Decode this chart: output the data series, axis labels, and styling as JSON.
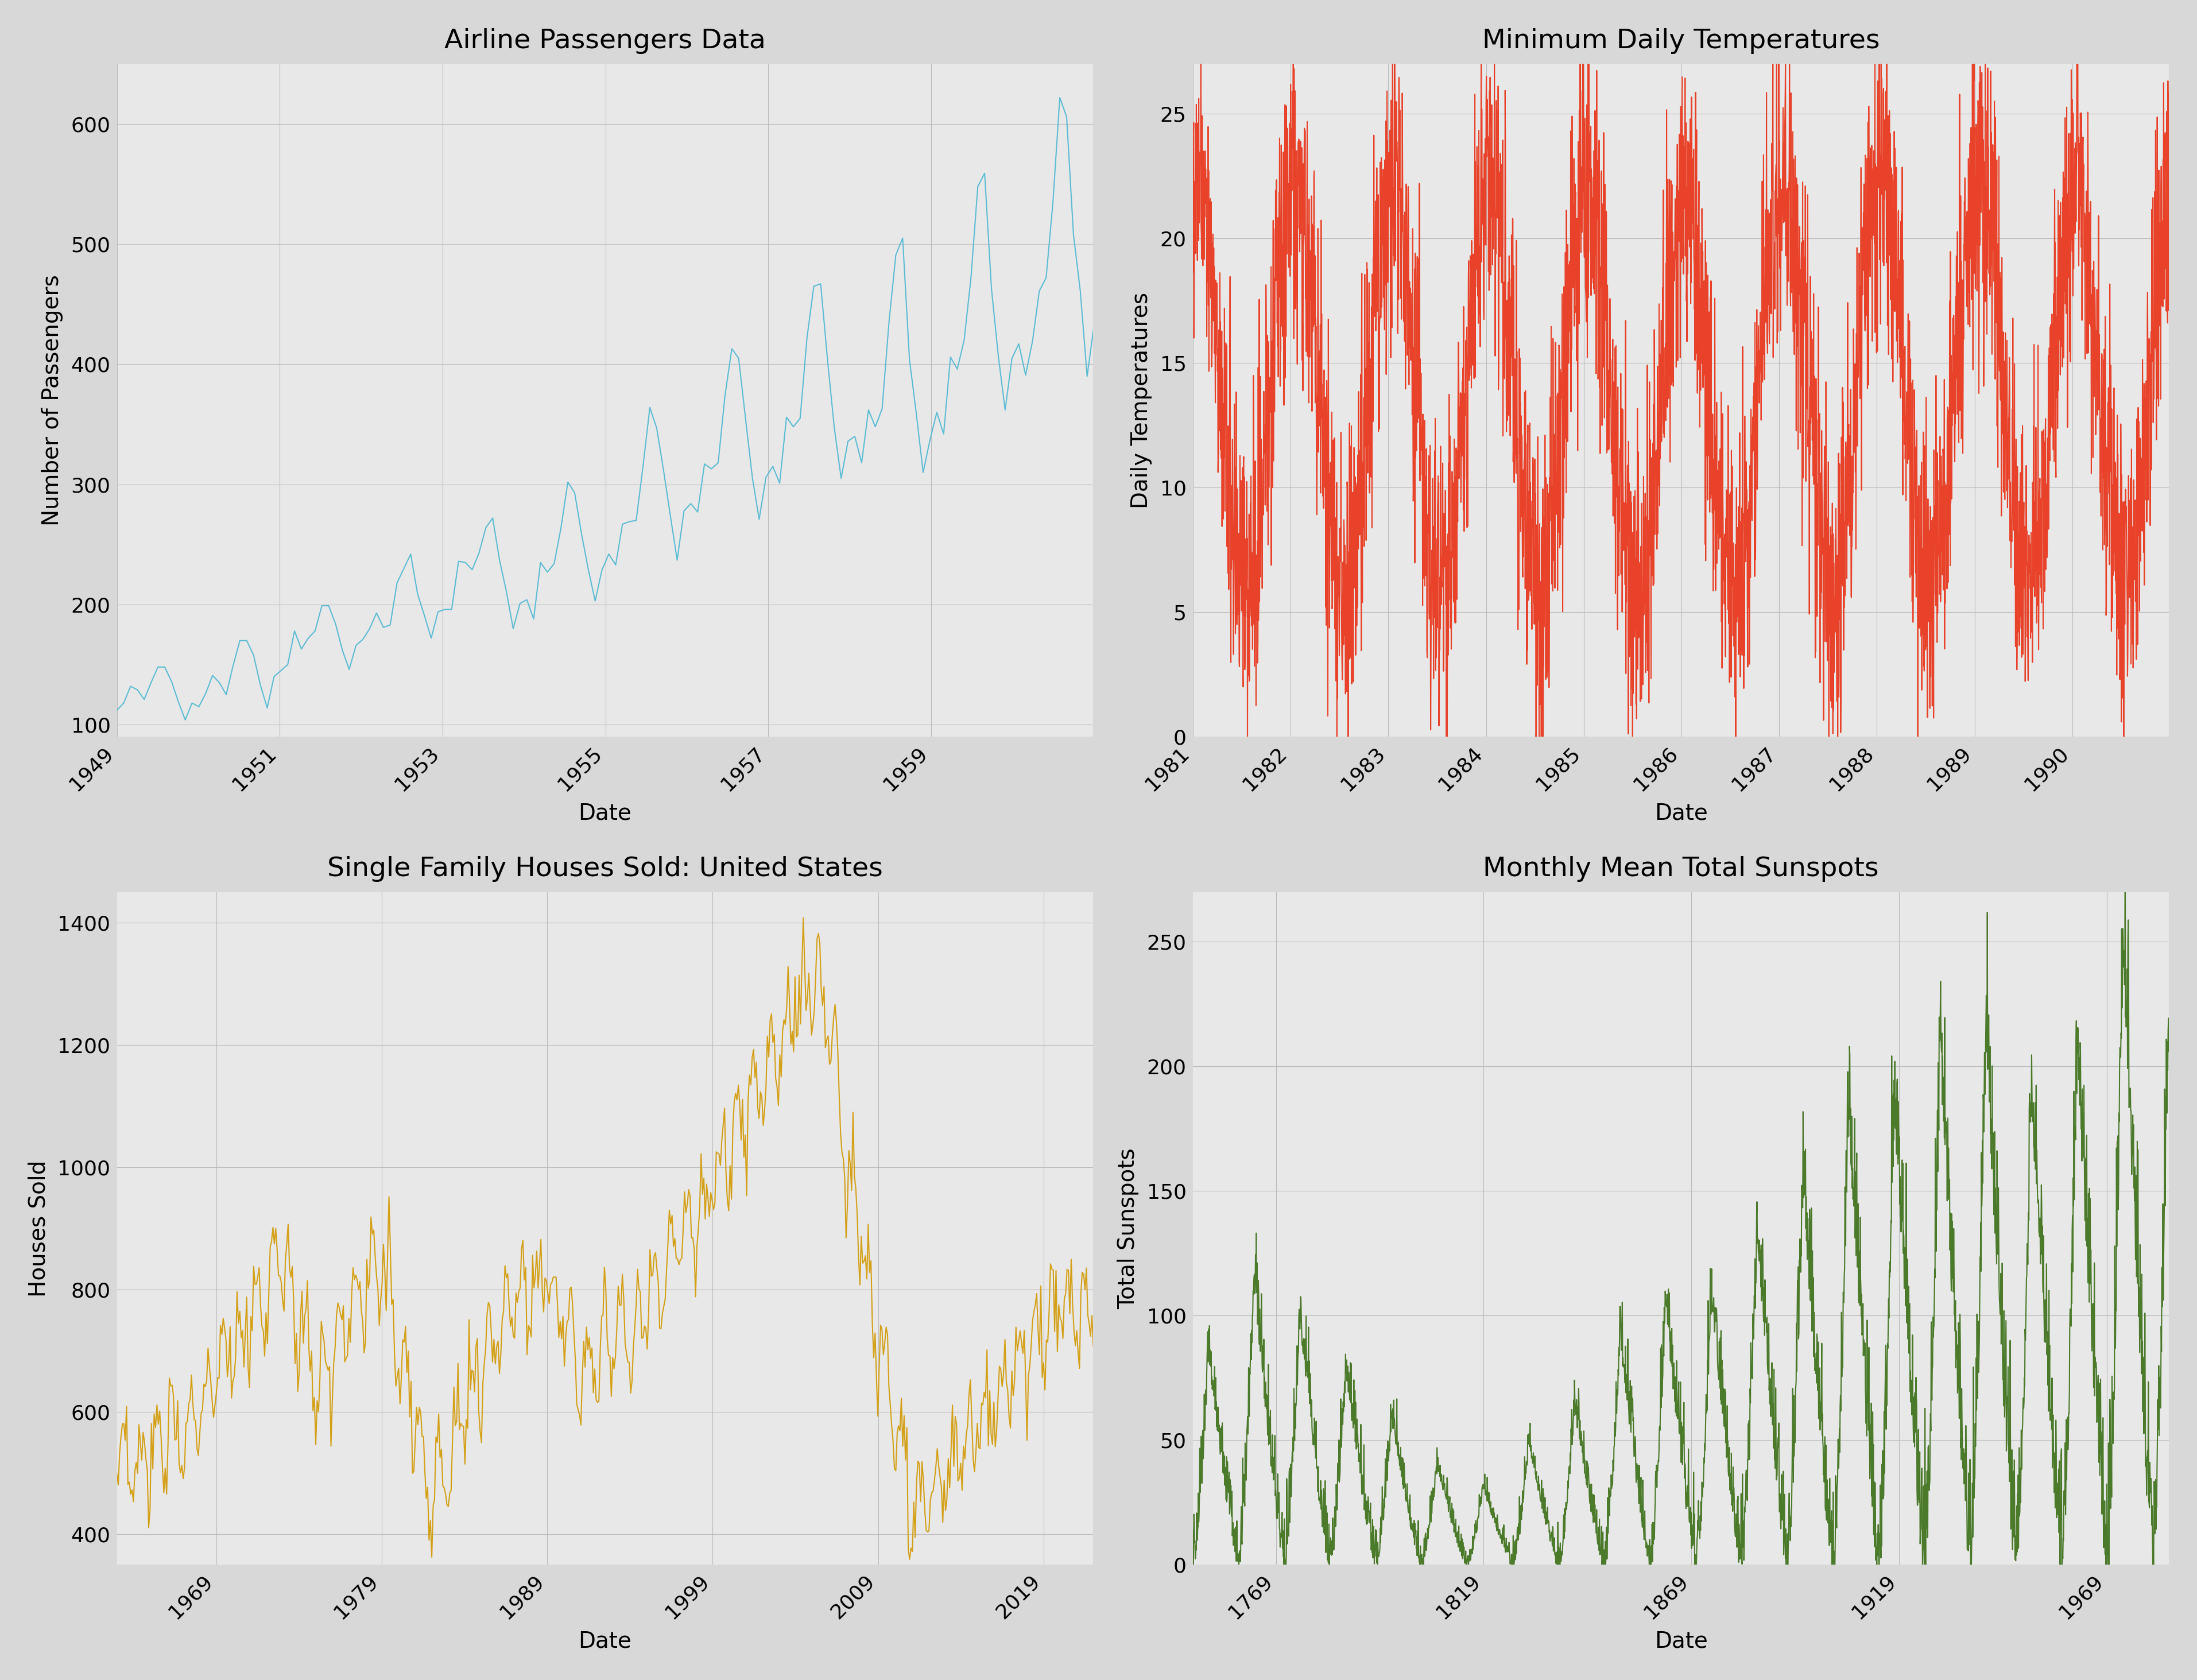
{
  "fig_width": 38.27,
  "fig_height": 29.26,
  "background_color": "#d8d8d8",
  "subplot_bg": "#e8e8e8",
  "grid_color": "#bbbbbb",
  "airline": {
    "title": "Airline Passengers Data",
    "xlabel": "Date",
    "ylabel": "Number of Passengers",
    "color": "#5bbcd4",
    "xticks": [
      1949,
      1951,
      1953,
      1955,
      1957,
      1959
    ],
    "yticks": [
      100,
      200,
      300,
      400,
      500,
      600
    ],
    "ylim": [
      90,
      650
    ],
    "xlim": [
      1949.0,
      1960.99
    ]
  },
  "temperature": {
    "title": "Minimum Daily Temperatures",
    "xlabel": "Date",
    "ylabel": "Daily Temperatures",
    "color": "#e8432a",
    "xticks": [
      1981,
      1982,
      1983,
      1984,
      1985,
      1986,
      1987,
      1988,
      1989,
      1990
    ],
    "yticks": [
      0,
      5,
      10,
      15,
      20,
      25
    ],
    "ylim": [
      0,
      27
    ],
    "xlim": [
      1981.0,
      1990.99
    ]
  },
  "houses": {
    "title": "Single Family Houses Sold: United States",
    "xlabel": "Date",
    "ylabel": "Houses Sold",
    "color": "#d4a017",
    "xticks": [
      1969,
      1979,
      1989,
      1999,
      2009,
      2019
    ],
    "yticks": [
      400,
      600,
      800,
      1000,
      1200,
      1400
    ],
    "ylim": [
      350,
      1450
    ],
    "xlim": [
      1963.0,
      2021.99
    ]
  },
  "sunspots": {
    "title": "Monthly Mean Total Sunspots",
    "xlabel": "Date",
    "ylabel": "Total Sunspots",
    "color": "#4a7a2a",
    "xticks": [
      1769,
      1819,
      1869,
      1919,
      1969
    ],
    "yticks": [
      0,
      50,
      100,
      150,
      200,
      250
    ],
    "ylim": [
      0,
      270
    ],
    "xlim": [
      1749.0,
      1983.99
    ]
  },
  "title_fontsize": 34,
  "label_fontsize": 28,
  "tick_fontsize": 26,
  "linewidth": 1.5
}
